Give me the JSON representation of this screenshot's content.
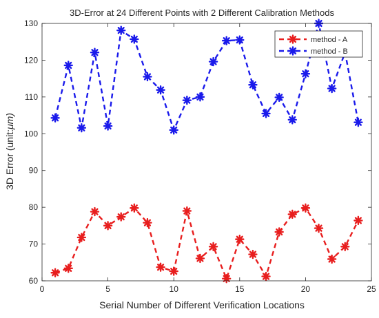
{
  "chart_data": {
    "type": "line",
    "title": "3D-Error at 24 Different Points with 2 Different Calibration Methods",
    "xlabel": "Serial Number of Different Verification Locations",
    "ylabel": "3D Error (unit:",
    "ylabel_unit": "μm)",
    "xlim": [
      0,
      25
    ],
    "ylim": [
      60,
      130
    ],
    "xticks": [
      0,
      5,
      10,
      15,
      20,
      25
    ],
    "yticks": [
      60,
      70,
      80,
      90,
      100,
      110,
      120,
      130
    ],
    "grid": false,
    "legend_position": "top-right",
    "x": [
      1,
      2,
      3,
      4,
      5,
      6,
      7,
      8,
      9,
      10,
      11,
      12,
      13,
      14,
      15,
      16,
      17,
      18,
      19,
      20,
      21,
      22,
      23,
      24
    ],
    "series": [
      {
        "name": "method - A",
        "color": "#e81e1e",
        "values": [
          62.2,
          63.4,
          71.8,
          78.8,
          75.0,
          77.4,
          79.8,
          75.8,
          63.7,
          62.6,
          79.0,
          66.1,
          69.3,
          60.6,
          71.3,
          67.2,
          61.2,
          73.3,
          78.1,
          79.8,
          74.3,
          65.9,
          69.3,
          76.4
        ]
      },
      {
        "name": "method - B",
        "color": "#1a1aeb",
        "values": [
          104.3,
          118.6,
          101.6,
          122.1,
          102.1,
          128.1,
          125.7,
          115.5,
          111.9,
          101.0,
          109.1,
          110.0,
          119.6,
          125.3,
          125.5,
          113.3,
          105.5,
          109.9,
          103.8,
          116.3,
          130.0,
          112.3,
          122.1,
          103.1
        ]
      }
    ]
  }
}
